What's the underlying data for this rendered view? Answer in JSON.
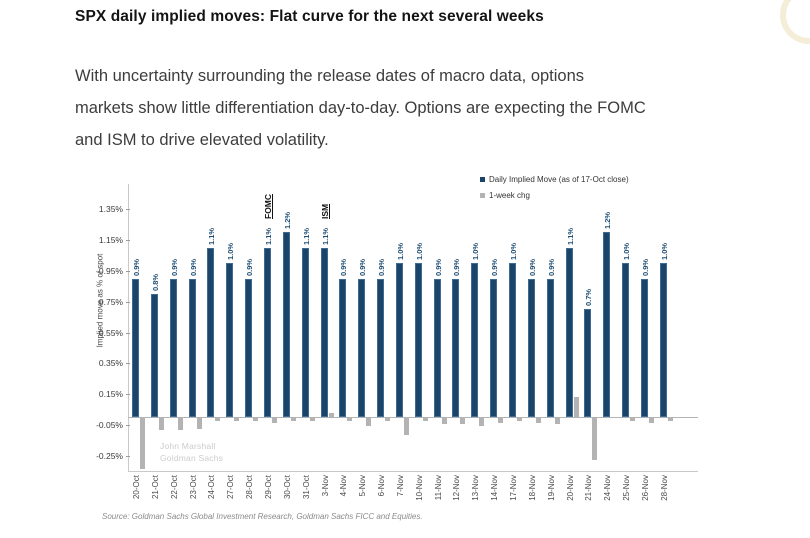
{
  "page": {
    "title": "SPX daily implied moves: Flat curve for the next several weeks",
    "paragraph_lines": [
      "With uncertainty surrounding the release dates of macro data, options",
      "markets show little differentiation day-to-day. Options are expecting the FOMC",
      "and ISM to drive elevated volatility."
    ],
    "source": "Source: Goldman Sachs Global Investment Research, Goldman Sachs FICC and Equities.",
    "watermark": {
      "line1": "John Marshall",
      "line2": "Goldman Sachs"
    }
  },
  "chart_data": {
    "type": "bar",
    "title": "",
    "xlabel": "",
    "ylabel": "Implied move as % of spot",
    "ylim": [
      -0.35,
      1.45
    ],
    "yticks": [
      1.35,
      1.15,
      0.95,
      0.75,
      0.55,
      0.35,
      0.15,
      -0.05,
      -0.25
    ],
    "ytick_suffix": "%",
    "grid": false,
    "legend_position": "top-right",
    "categories": [
      "20-Oct",
      "21-Oct",
      "22-Oct",
      "23-Oct",
      "24-Oct",
      "27-Oct",
      "28-Oct",
      "29-Oct",
      "30-Oct",
      "31-Oct",
      "3-Nov",
      "4-Nov",
      "5-Nov",
      "6-Nov",
      "7-Nov",
      "10-Nov",
      "11-Nov",
      "12-Nov",
      "13-Nov",
      "14-Nov",
      "17-Nov",
      "18-Nov",
      "19-Nov",
      "20-Nov",
      "21-Nov",
      "24-Nov",
      "25-Nov",
      "26-Nov",
      "28-Nov"
    ],
    "series": [
      {
        "name": "Daily Implied Move (as of 17-Oct close)",
        "color": "#1a4569",
        "show_value_labels": true,
        "values": [
          0.9,
          0.8,
          0.9,
          0.9,
          1.1,
          1.0,
          0.9,
          1.1,
          1.2,
          1.1,
          1.1,
          0.9,
          0.9,
          0.9,
          1.0,
          1.0,
          0.9,
          0.9,
          1.0,
          0.9,
          1.0,
          0.9,
          0.9,
          1.1,
          0.7,
          1.2,
          1.0,
          0.9,
          1.0
        ]
      },
      {
        "name": "1-week chg",
        "color": "#b3b3b3",
        "show_value_labels": false,
        "values": [
          -0.33,
          -0.08,
          -0.08,
          -0.07,
          -0.02,
          -0.02,
          -0.02,
          -0.03,
          -0.02,
          -0.02,
          0.03,
          -0.02,
          -0.05,
          -0.02,
          -0.11,
          -0.02,
          -0.04,
          -0.04,
          -0.05,
          -0.03,
          -0.02,
          -0.03,
          -0.04,
          0.13,
          -0.27,
          0.0,
          -0.02,
          -0.03,
          -0.02
        ]
      }
    ],
    "annotations": [
      {
        "text": "FOMC",
        "category": "29-Oct"
      },
      {
        "text": "ISM",
        "category": "3-Nov"
      }
    ]
  }
}
